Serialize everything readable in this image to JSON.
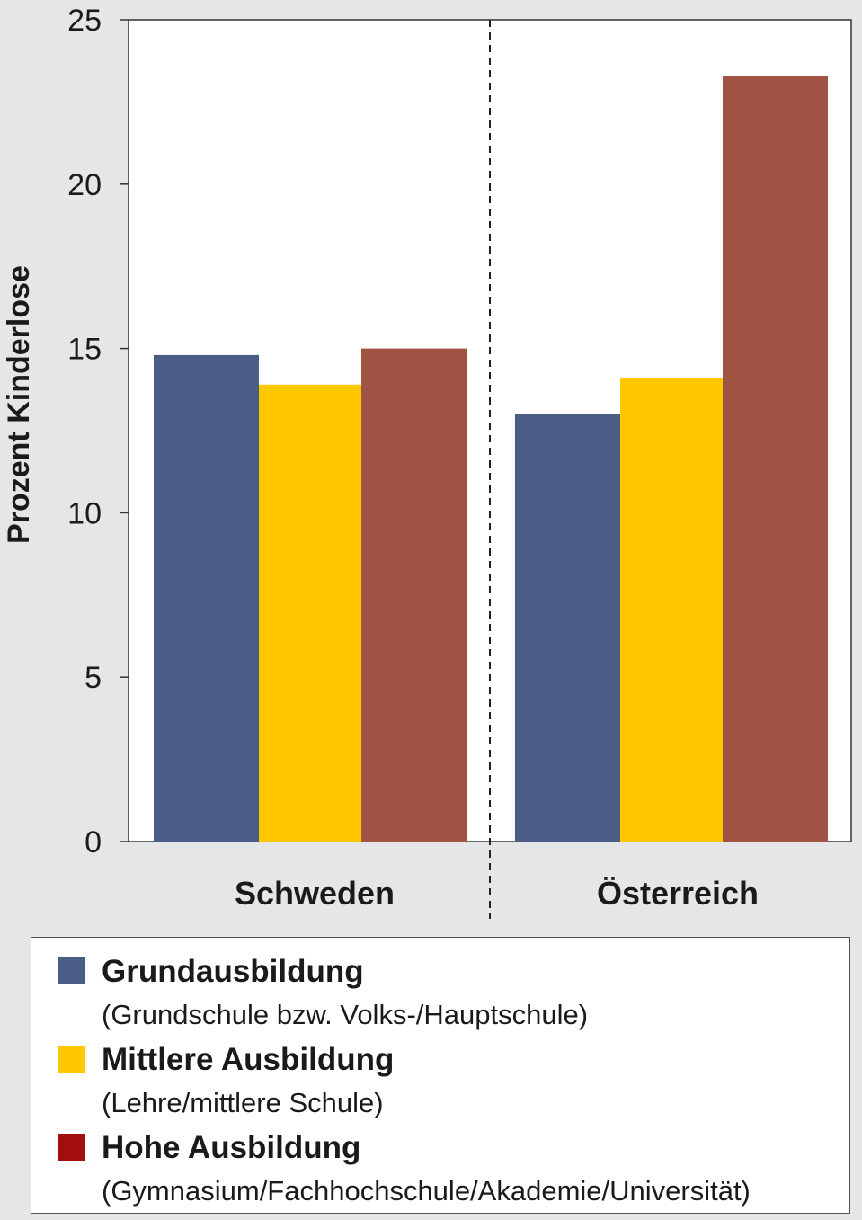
{
  "chart_data": {
    "type": "bar",
    "title": "",
    "xlabel": "",
    "ylabel": "Prozent Kinderlose",
    "ylim": [
      0,
      25
    ],
    "yticks": [
      "0",
      "5",
      "10",
      "15",
      "20",
      "25"
    ],
    "grid": false,
    "legend_position": "bottom",
    "categories": [
      "Schweden",
      "Österreich"
    ],
    "series": [
      {
        "name": "Grundausbildung",
        "subtitle": "(Grundschule bzw. Volks-/Hauptschule)",
        "color": "#4a5d87",
        "values": [
          14.8,
          13.0
        ]
      },
      {
        "name": "Mittlere Ausbildung",
        "subtitle": "(Lehre/mittlere Schule)",
        "color": "#ffc700",
        "values": [
          13.9,
          14.1
        ]
      },
      {
        "name": "Hohe Ausbildung",
        "subtitle": "(Gymnasium/Fachhochschule/Akademie/Universität)",
        "color": "#a05443",
        "legend_color": "#a30e0e",
        "values": [
          15.0,
          23.3
        ]
      }
    ]
  }
}
